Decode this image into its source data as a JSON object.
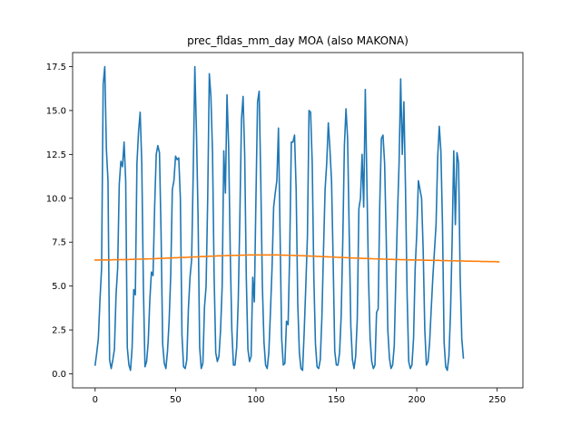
{
  "chart_data": {
    "type": "line",
    "title": "prec_fldas_mm_day MOA (also MAKONA)",
    "xlabel": "",
    "ylabel": "",
    "xlim": [
      -14,
      266
    ],
    "ylim": [
      -0.8,
      18.3
    ],
    "x_ticks": [
      0,
      50,
      100,
      150,
      200,
      250
    ],
    "x_tick_labels": [
      "0",
      "50",
      "100",
      "150",
      "200",
      "250"
    ],
    "y_ticks": [
      0.0,
      2.5,
      5.0,
      7.5,
      10.0,
      12.5,
      15.0,
      17.5
    ],
    "y_tick_labels": [
      "0.0",
      "2.5",
      "5.0",
      "7.5",
      "10.0",
      "12.5",
      "15.0",
      "17.5"
    ],
    "grid": false,
    "legend": "none",
    "series": [
      {
        "color": "#1f77b4",
        "values": [
          0.5,
          1.2,
          2.0,
          4.2,
          6.0,
          16.5,
          17.5,
          12.8,
          11.0,
          0.8,
          0.3,
          0.8,
          1.4,
          4.5,
          6.0,
          10.8,
          12.1,
          11.8,
          13.2,
          11.0,
          1.5,
          0.5,
          0.2,
          1.5,
          4.8,
          4.5,
          12.0,
          13.8,
          14.9,
          12.0,
          5.0,
          0.4,
          0.7,
          1.8,
          4.2,
          5.8,
          5.6,
          9.5,
          12.5,
          13.0,
          12.6,
          8.0,
          1.7,
          0.6,
          0.3,
          1.3,
          3.0,
          5.6,
          10.5,
          11.0,
          12.4,
          12.2,
          12.3,
          10.0,
          2.2,
          0.4,
          0.3,
          0.8,
          3.7,
          5.5,
          6.5,
          11.5,
          17.5,
          13.8,
          9.0,
          1.5,
          0.3,
          0.6,
          3.8,
          5.0,
          10.0,
          17.1,
          15.8,
          12.6,
          5.5,
          1.2,
          0.7,
          1.0,
          2.5,
          5.0,
          12.7,
          10.3,
          15.9,
          13.0,
          7.0,
          2.5,
          0.5,
          0.5,
          1.5,
          4.2,
          9.0,
          14.5,
          15.8,
          12.5,
          5.5,
          1.4,
          0.7,
          1.0,
          5.5,
          4.1,
          10.0,
          15.5,
          16.1,
          11.0,
          5.0,
          1.8,
          0.5,
          0.3,
          1.2,
          3.5,
          6.0,
          9.5,
          10.3,
          11.0,
          14.0,
          8.0,
          2.0,
          0.5,
          0.6,
          3.0,
          2.8,
          7.0,
          13.2,
          13.2,
          13.6,
          10.5,
          4.0,
          1.2,
          0.3,
          0.2,
          2.4,
          5.0,
          7.8,
          15.0,
          14.9,
          12.0,
          5.5,
          1.7,
          0.4,
          0.3,
          0.8,
          3.2,
          7.0,
          10.5,
          12.0,
          14.3,
          12.8,
          11.0,
          6.5,
          1.3,
          0.5,
          0.5,
          1.2,
          3.3,
          7.6,
          13.0,
          15.1,
          13.4,
          8.0,
          2.7,
          0.8,
          0.3,
          1.0,
          3.1,
          9.4,
          10.0,
          12.5,
          9.5,
          16.2,
          10.8,
          5.5,
          2.0,
          0.7,
          0.3,
          0.5,
          3.5,
          3.7,
          9.7,
          13.4,
          13.6,
          12.0,
          7.8,
          2.5,
          0.9,
          0.3,
          0.5,
          1.6,
          5.5,
          9.0,
          12.0,
          16.8,
          12.5,
          15.5,
          10.5,
          4.5,
          0.7,
          0.3,
          0.5,
          2.0,
          6.0,
          8.0,
          11.0,
          10.5,
          10.0,
          7.0,
          2.5,
          0.5,
          0.7,
          1.8,
          3.7,
          5.5,
          7.0,
          8.5,
          12.3,
          14.1,
          12.7,
          8.5,
          1.8,
          0.4,
          0.2,
          1.0,
          3.5,
          7.6,
          12.7,
          8.5,
          12.6,
          12.0,
          5.5,
          2.0,
          0.9
        ]
      },
      {
        "color": "#ff7f0e",
        "values": [
          6.48,
          6.48,
          6.48,
          6.48,
          6.49,
          6.49,
          6.49,
          6.49,
          6.49,
          6.49,
          6.49,
          6.5,
          6.5,
          6.5,
          6.5,
          6.5,
          6.51,
          6.51,
          6.51,
          6.51,
          6.51,
          6.51,
          6.52,
          6.52,
          6.52,
          6.52,
          6.53,
          6.53,
          6.53,
          6.53,
          6.54,
          6.54,
          6.54,
          6.55,
          6.55,
          6.55,
          6.56,
          6.56,
          6.56,
          6.57,
          6.57,
          6.57,
          6.58,
          6.58,
          6.59,
          6.59,
          6.59,
          6.6,
          6.6,
          6.61,
          6.61,
          6.61,
          6.62,
          6.62,
          6.63,
          6.63,
          6.63,
          6.64,
          6.64,
          6.65,
          6.65,
          6.66,
          6.66,
          6.66,
          6.67,
          6.67,
          6.68,
          6.68,
          6.68,
          6.69,
          6.69,
          6.7,
          6.7,
          6.7,
          6.71,
          6.71,
          6.72,
          6.72,
          6.72,
          6.73,
          6.73,
          6.73,
          6.74,
          6.74,
          6.74,
          6.74,
          6.75,
          6.75,
          6.75,
          6.75,
          6.76,
          6.76,
          6.76,
          6.76,
          6.76,
          6.77,
          6.77,
          6.77,
          6.77,
          6.77,
          6.77,
          6.77,
          6.77,
          6.77,
          6.77,
          6.77,
          6.77,
          6.77,
          6.77,
          6.77,
          6.77,
          6.77,
          6.77,
          6.77,
          6.77,
          6.76,
          6.76,
          6.76,
          6.76,
          6.76,
          6.75,
          6.75,
          6.75,
          6.75,
          6.74,
          6.74,
          6.74,
          6.73,
          6.73,
          6.73,
          6.72,
          6.72,
          6.72,
          6.71,
          6.71,
          6.7,
          6.7,
          6.7,
          6.69,
          6.69,
          6.68,
          6.68,
          6.68,
          6.67,
          6.67,
          6.66,
          6.66,
          6.66,
          6.65,
          6.65,
          6.64,
          6.64,
          6.63,
          6.63,
          6.63,
          6.62,
          6.62,
          6.61,
          6.61,
          6.6,
          6.6,
          6.6,
          6.59,
          6.59,
          6.59,
          6.58,
          6.58,
          6.57,
          6.57,
          6.57,
          6.56,
          6.56,
          6.56,
          6.55,
          6.55,
          6.55,
          6.54,
          6.54,
          6.54,
          6.53,
          6.53,
          6.53,
          6.52,
          6.52,
          6.52,
          6.52,
          6.51,
          6.51,
          6.51,
          6.51,
          6.5,
          6.5,
          6.5,
          6.5,
          6.49,
          6.49,
          6.49,
          6.49,
          6.49,
          6.48,
          6.48,
          6.48,
          6.48,
          6.48,
          6.47,
          6.47,
          6.47,
          6.47,
          6.47,
          6.46,
          6.46,
          6.46,
          6.46,
          6.46,
          6.46,
          6.45,
          6.45,
          6.45,
          6.45,
          6.45,
          6.44,
          6.44,
          6.44,
          6.44,
          6.44,
          6.43,
          6.43,
          6.43,
          6.43,
          6.43,
          6.42,
          6.42,
          6.42,
          6.42,
          6.42,
          6.41,
          6.41,
          6.41,
          6.41,
          6.41,
          6.4,
          6.4,
          6.4,
          6.4,
          6.4,
          6.39,
          6.39,
          6.39,
          6.39,
          6.39,
          6.38,
          6.38
        ]
      }
    ]
  }
}
